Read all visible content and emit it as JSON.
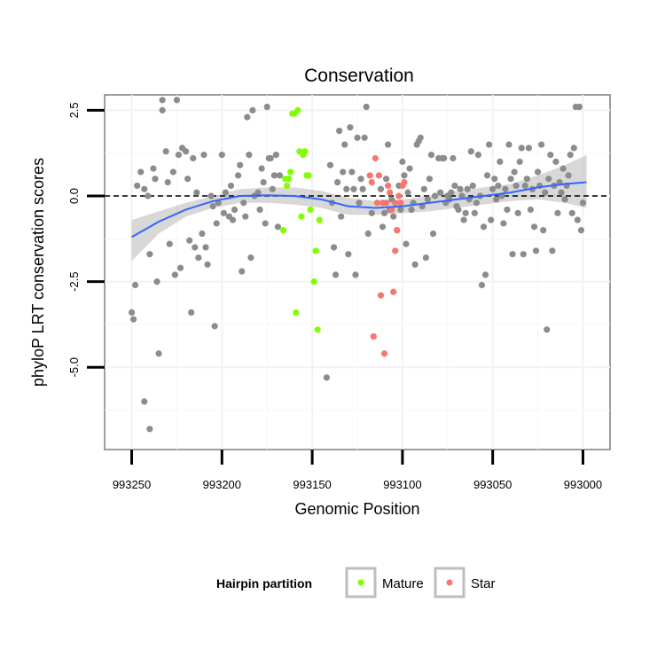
{
  "chart_data": {
    "type": "scatter",
    "title": "Conservation",
    "xlabel": "Genomic Position",
    "ylabel": "phyloP LRT conservation scores",
    "x_reversed": true,
    "xlim": [
      992985,
      993265
    ],
    "ylim": [
      -7.4,
      2.95
    ],
    "x_ticks": [
      993250,
      993200,
      993150,
      993100,
      993050,
      993000
    ],
    "x_tick_labels": [
      "993250",
      "993200",
      "993150",
      "993100",
      "993050",
      "993000"
    ],
    "y_ticks": [
      2.5,
      0,
      -2.5,
      -5
    ],
    "y_tick_labels": [
      "2.5",
      "0.0",
      "-2.5",
      "-5.0"
    ],
    "grid": true,
    "reference_line": {
      "y": 0,
      "style": "dashed",
      "color": "#000000"
    },
    "legend": {
      "title": "Hairpin partition",
      "position": "bottom",
      "entries": [
        {
          "label": "Mature",
          "color": "#7FFF00"
        },
        {
          "label": "Star",
          "color": "#F8766D"
        }
      ]
    },
    "colors": {
      "other": "#8C8C8C",
      "mature": "#7FFF00",
      "star": "#F8766D",
      "smooth": "#3366FF",
      "ribbon": "#BEBEBE"
    },
    "series": [
      {
        "group": "other",
        "points": [
          [
            993248,
            -2.6
          ],
          [
            993250,
            -3.4
          ],
          [
            993249,
            -3.6
          ],
          [
            993247,
            0.3
          ],
          [
            993245,
            0.7
          ],
          [
            993243,
            0.2
          ],
          [
            993241,
            0.0
          ],
          [
            993240,
            -1.7
          ],
          [
            993238,
            0.8
          ],
          [
            993237,
            0.5
          ],
          [
            993236,
            -2.5
          ],
          [
            993235,
            -4.6
          ],
          [
            993233,
            2.8
          ],
          [
            993233,
            2.5
          ],
          [
            993231,
            1.3
          ],
          [
            993230,
            0.4
          ],
          [
            993229,
            -1.4
          ],
          [
            993227,
            0.7
          ],
          [
            993226,
            -2.3
          ],
          [
            993225,
            2.8
          ],
          [
            993224,
            1.2
          ],
          [
            993223,
            -2.1
          ],
          [
            993222,
            1.4
          ],
          [
            993220,
            1.3
          ],
          [
            993219,
            0.5
          ],
          [
            993218,
            -1.3
          ],
          [
            993217,
            -3.4
          ],
          [
            993216,
            1.1
          ],
          [
            993215,
            -1.5
          ],
          [
            993214,
            0.1
          ],
          [
            993213,
            -1.8
          ],
          [
            993211,
            -1.1
          ],
          [
            993210,
            1.2
          ],
          [
            993209,
            -1.5
          ],
          [
            993208,
            -2.0
          ],
          [
            993206,
            0.0
          ],
          [
            993205,
            -0.3
          ],
          [
            993204,
            -3.8
          ],
          [
            993203,
            -0.8
          ],
          [
            993202,
            -0.2
          ],
          [
            993200,
            1.2
          ],
          [
            993199,
            -0.5
          ],
          [
            993198,
            0.1
          ],
          [
            993196,
            -0.6
          ],
          [
            993195,
            0.3
          ],
          [
            993194,
            -0.7
          ],
          [
            993193,
            -0.4
          ],
          [
            993191,
            0.6
          ],
          [
            993190,
            0.9
          ],
          [
            993189,
            -2.2
          ],
          [
            993188,
            -0.2
          ],
          [
            993187,
            -0.6
          ],
          [
            993186,
            2.3
          ],
          [
            993185,
            1.2
          ],
          [
            993184,
            -1.8
          ],
          [
            993183,
            2.5
          ],
          [
            993182,
            0.0
          ],
          [
            993180,
            0.1
          ],
          [
            993179,
            -0.4
          ],
          [
            993178,
            0.8
          ],
          [
            993177,
            0.4
          ],
          [
            993176,
            -0.8
          ],
          [
            993175,
            2.6
          ],
          [
            993174,
            1.1
          ],
          [
            993173,
            1.1
          ],
          [
            993172,
            0.2
          ],
          [
            993171,
            0.6
          ],
          [
            993170,
            1.2
          ],
          [
            993169,
            -0.9
          ],
          [
            993168,
            0.6
          ],
          [
            993140,
            0.9
          ],
          [
            993139,
            -0.2
          ],
          [
            993138,
            -1.5
          ],
          [
            993137,
            -2.3
          ],
          [
            993136,
            0.4
          ],
          [
            993135,
            1.9
          ],
          [
            993134,
            -0.6
          ],
          [
            993133,
            0.7
          ],
          [
            993132,
            1.5
          ],
          [
            993131,
            0.2
          ],
          [
            993130,
            -1.7
          ],
          [
            993129,
            2.0
          ],
          [
            993128,
            0.7
          ],
          [
            993127,
            0.2
          ],
          [
            993126,
            -2.3
          ],
          [
            993125,
            1.7
          ],
          [
            993124,
            -0.2
          ],
          [
            993123,
            0.5
          ],
          [
            993122,
            0.2
          ],
          [
            993121,
            1.7
          ],
          [
            993120,
            2.6
          ],
          [
            993119,
            -1.1
          ],
          [
            993117,
            -0.5
          ],
          [
            993112,
            0.2
          ],
          [
            993111,
            -0.9
          ],
          [
            993110,
            -0.5
          ],
          [
            993109,
            0.5
          ],
          [
            993108,
            1.5
          ],
          [
            993107,
            -0.4
          ],
          [
            993106,
            -0.1
          ],
          [
            993105,
            -0.6
          ],
          [
            993104,
            -0.2
          ],
          [
            993103,
            -1.0
          ],
          [
            993102,
            0.3
          ],
          [
            993101,
            -0.4
          ],
          [
            993100,
            1.0
          ],
          [
            993099,
            0.6
          ],
          [
            993098,
            -1.4
          ],
          [
            993097,
            0.1
          ],
          [
            993096,
            0.8
          ],
          [
            993095,
            -0.4
          ],
          [
            993094,
            -0.2
          ],
          [
            993093,
            -2.0
          ],
          [
            993092,
            1.5
          ],
          [
            993091,
            1.6
          ],
          [
            993090,
            1.7
          ],
          [
            993089,
            -0.3
          ],
          [
            993088,
            0.2
          ],
          [
            993087,
            -1.8
          ],
          [
            993086,
            -0.1
          ],
          [
            993085,
            0.5
          ],
          [
            993084,
            1.2
          ],
          [
            993083,
            -1.1
          ],
          [
            993082,
            0.0
          ],
          [
            993080,
            1.1
          ],
          [
            993079,
            0.1
          ],
          [
            993078,
            1.1
          ],
          [
            993077,
            1.1
          ],
          [
            993076,
            -0.2
          ],
          [
            993075,
            0.0
          ],
          [
            993074,
            -0.1
          ],
          [
            993073,
            0.1
          ],
          [
            993072,
            1.1
          ],
          [
            993071,
            0.3
          ],
          [
            993070,
            -0.3
          ],
          [
            993069,
            -0.4
          ],
          [
            993068,
            0.2
          ],
          [
            993067,
            0.0
          ],
          [
            993066,
            -0.7
          ],
          [
            993065,
            -0.5
          ],
          [
            993064,
            0.2
          ],
          [
            993063,
            -0.1
          ],
          [
            993062,
            1.3
          ],
          [
            993061,
            0.3
          ],
          [
            993060,
            -0.5
          ],
          [
            993059,
            -0.2
          ],
          [
            993058,
            1.2
          ],
          [
            993057,
            0.0
          ],
          [
            993056,
            -2.6
          ],
          [
            993055,
            -0.9
          ],
          [
            993054,
            -2.3
          ],
          [
            993053,
            0.6
          ],
          [
            993052,
            1.5
          ],
          [
            993051,
            -0.7
          ],
          [
            993050,
            0.2
          ],
          [
            993049,
            0.5
          ],
          [
            993048,
            -0.1
          ],
          [
            993047,
            0.3
          ],
          [
            993046,
            1.0
          ],
          [
            993045,
            0.0
          ],
          [
            993044,
            -0.8
          ],
          [
            993043,
            0.2
          ],
          [
            993042,
            -0.4
          ],
          [
            993041,
            1.5
          ],
          [
            993040,
            0.5
          ],
          [
            993039,
            -1.7
          ],
          [
            993038,
            0.7
          ],
          [
            993037,
            0.3
          ],
          [
            993036,
            -0.5
          ],
          [
            993035,
            1.0
          ],
          [
            993034,
            1.4
          ],
          [
            993033,
            -1.7
          ],
          [
            993032,
            0.3
          ],
          [
            993031,
            0.5
          ],
          [
            993030,
            1.4
          ],
          [
            993029,
            -0.4
          ],
          [
            993028,
            0.2
          ],
          [
            993027,
            -0.9
          ],
          [
            993026,
            -1.6
          ],
          [
            993025,
            0.7
          ],
          [
            993024,
            0.3
          ],
          [
            993023,
            1.5
          ],
          [
            993022,
            -1.0
          ],
          [
            993021,
            0.1
          ],
          [
            993020,
            -3.9
          ],
          [
            993019,
            0.5
          ],
          [
            993018,
            1.2
          ],
          [
            993017,
            -1.6
          ],
          [
            993016,
            0.3
          ],
          [
            993015,
            1.0
          ],
          [
            993014,
            -0.5
          ],
          [
            993013,
            0.4
          ],
          [
            993012,
            0.1
          ],
          [
            993011,
            0.8
          ],
          [
            993010,
            -0.1
          ],
          [
            993009,
            0.3
          ],
          [
            993008,
            0.6
          ],
          [
            993007,
            1.2
          ],
          [
            993006,
            -0.5
          ],
          [
            993005,
            1.4
          ],
          [
            993004,
            2.6
          ],
          [
            993003,
            -0.7
          ],
          [
            993002,
            2.6
          ],
          [
            993001,
            -1.0
          ],
          [
            993000,
            -0.2
          ]
        ]
      },
      {
        "group": "other",
        "points": [
          [
            993240,
            -6.8
          ],
          [
            993243,
            -6.0
          ],
          [
            993142,
            -5.3
          ]
        ]
      },
      {
        "group": "mature",
        "points": [
          [
            993166,
            -1.0
          ],
          [
            993165,
            0.5
          ],
          [
            993164,
            0.3
          ],
          [
            993163,
            0.5
          ],
          [
            993162,
            0.7
          ],
          [
            993161,
            2.4
          ],
          [
            993160,
            2.4
          ],
          [
            993159,
            -3.4
          ],
          [
            993158,
            2.5
          ],
          [
            993157,
            1.3
          ],
          [
            993156,
            -0.6
          ],
          [
            993155,
            1.2
          ],
          [
            993154,
            1.3
          ],
          [
            993153,
            0.6
          ],
          [
            993152,
            0.6
          ],
          [
            993151,
            -0.4
          ],
          [
            993149,
            -2.5
          ],
          [
            993148,
            -1.6
          ],
          [
            993147,
            -3.9
          ],
          [
            993146,
            -0.7
          ]
        ]
      },
      {
        "group": "star",
        "points": [
          [
            993118,
            0.6
          ],
          [
            993117,
            0.4
          ],
          [
            993116,
            -4.1
          ],
          [
            993115,
            1.1
          ],
          [
            993114,
            -0.2
          ],
          [
            993113,
            0.6
          ],
          [
            993112,
            -2.9
          ],
          [
            993111,
            -0.2
          ],
          [
            993110,
            -4.6
          ],
          [
            993109,
            -0.2
          ],
          [
            993108,
            0.3
          ],
          [
            993107,
            0.1
          ],
          [
            993106,
            -0.4
          ],
          [
            993105,
            -2.8
          ],
          [
            993104,
            -0.2
          ],
          [
            993103,
            -1.0
          ],
          [
            993102,
            0.0
          ],
          [
            993101,
            -0.2
          ],
          [
            993100,
            0.3
          ],
          [
            993099,
            0.4
          ],
          [
            993104,
            -1.6
          ]
        ]
      }
    ],
    "smooth": {
      "x": [
        993250,
        993235,
        993220,
        993205,
        993190,
        993175,
        993160,
        993145,
        993130,
        993115,
        993100,
        993085,
        993070,
        993055,
        993040,
        993025,
        993010,
        992998
      ],
      "y": [
        -1.2,
        -0.75,
        -0.4,
        -0.15,
        0.0,
        0.02,
        0.0,
        -0.1,
        -0.3,
        -0.35,
        -0.3,
        -0.2,
        -0.1,
        0.0,
        0.1,
        0.25,
        0.35,
        0.4
      ],
      "upper": [
        -0.7,
        -0.45,
        -0.2,
        0.0,
        0.2,
        0.25,
        0.25,
        0.15,
        -0.05,
        -0.15,
        -0.1,
        0.0,
        0.15,
        0.25,
        0.35,
        0.6,
        0.9,
        1.2
      ],
      "lower": [
        -1.9,
        -1.1,
        -0.6,
        -0.35,
        -0.2,
        -0.2,
        -0.25,
        -0.35,
        -0.55,
        -0.55,
        -0.5,
        -0.45,
        -0.35,
        -0.25,
        -0.15,
        -0.1,
        -0.2,
        -0.35
      ]
    }
  }
}
